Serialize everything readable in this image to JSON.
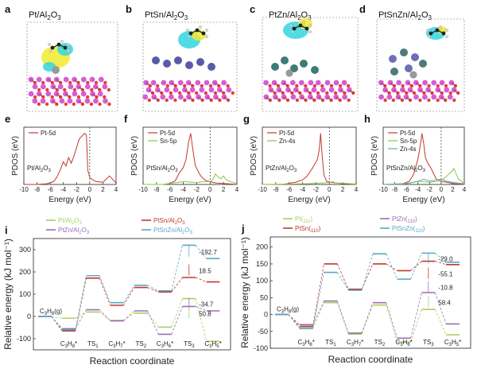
{
  "panels": {
    "a": {
      "letter": "a",
      "title": "Pt/Al2O3"
    },
    "b": {
      "letter": "b",
      "title": "PtSn/Al2O3"
    },
    "c": {
      "letter": "c",
      "title": "PtZn/Al2O3"
    },
    "d": {
      "letter": "d",
      "title": "PtSnZn/Al2O3"
    }
  },
  "colors": {
    "pt": "#c0392b",
    "sn": "#8bc34a",
    "zn": "#5ba7b5",
    "ptsn": "#c0392b",
    "ptzn": "#9b6fb5",
    "ptsnzn": "#5aa7c8",
    "pt_only": "#a8d060",
    "al": "#d65cd6",
    "o": "#e0413a",
    "iso_yellow": "#f2ea2f",
    "iso_cyan": "#33d6e0"
  },
  "chart_data": [
    {
      "type": "line",
      "panel": "e",
      "title": "Pt/Al2O3",
      "xlabel": "Energy (eV)",
      "ylabel": "PDOS (eV)",
      "xlim": [
        -10,
        4
      ],
      "xticks": [
        "-10",
        "-8",
        "-6",
        "-4",
        "-2",
        "0",
        "2",
        "4"
      ],
      "series": [
        {
          "name": "Pt-5d",
          "x": [
            -10,
            -8,
            -6.5,
            -5.5,
            -5,
            -4.5,
            -4,
            -3.6,
            -3.2,
            -2.8,
            -2.4,
            -2,
            -1.6,
            -1.2,
            -0.8,
            -0.5,
            -0.3,
            0,
            0.5,
            1,
            2,
            3,
            4
          ],
          "y": [
            0,
            0,
            0.05,
            0.2,
            0.5,
            1.0,
            1.6,
            1.3,
            1.9,
            1.5,
            2.0,
            2.6,
            3.2,
            3.4,
            3.6,
            3.5,
            1.0,
            0.5,
            0.3,
            0.2,
            0.15,
            0.6,
            0.1
          ]
        }
      ]
    },
    {
      "type": "line",
      "panel": "f",
      "title": "PtSn/Al2O3",
      "xlabel": "Energy (eV)",
      "ylabel": "PDOS (eV)",
      "xlim": [
        -10,
        4
      ],
      "xticks": [
        "-10",
        "-8",
        "-6",
        "-4",
        "-2",
        "0",
        "2",
        "4"
      ],
      "series": [
        {
          "name": "Pt-5d",
          "x": [
            -10,
            -7,
            -6,
            -5.2,
            -4.6,
            -4,
            -3.6,
            -3.2,
            -2.9,
            -2.6,
            -2.2,
            -1.8,
            -1.4,
            -1,
            -0.6,
            0,
            0.5,
            1,
            2,
            4
          ],
          "y": [
            0,
            0,
            0.1,
            0.4,
            1.2,
            1.8,
            2.6,
            4.5,
            5.4,
            3.8,
            2.0,
            1.4,
            0.9,
            0.6,
            0.4,
            0.3,
            0.2,
            0.15,
            0.1,
            0
          ]
        },
        {
          "name": "Sn-5p",
          "x": [
            -10,
            -7,
            -5,
            -4,
            -3,
            -2,
            -1,
            0,
            0.4,
            0.8,
            1.2,
            1.6,
            2,
            2.4,
            3,
            4
          ],
          "y": [
            0,
            0,
            0.2,
            0.3,
            0.25,
            0.2,
            0.3,
            0.3,
            0.5,
            1.1,
            0.8,
            0.6,
            0.9,
            0.5,
            0.3,
            0.1
          ]
        }
      ]
    },
    {
      "type": "line",
      "panel": "g",
      "title": "PtZn/Al2O3",
      "xlabel": "Energy (eV)",
      "ylabel": "PDOS (eV)",
      "xlim": [
        -10,
        4
      ],
      "xticks": [
        "-10",
        "-8",
        "-6",
        "-4",
        "-2",
        "0",
        "2",
        "4"
      ],
      "series": [
        {
          "name": "Pt-5d",
          "x": [
            -10,
            -7,
            -5,
            -4,
            -3.4,
            -3,
            -2.6,
            -2.2,
            -1.8,
            -1.5,
            -1.3,
            -1.1,
            -0.8,
            -0.4,
            0,
            1,
            2,
            4
          ],
          "y": [
            0,
            0,
            0.3,
            0.6,
            1.0,
            1.5,
            2.0,
            2.6,
            3.2,
            4.5,
            6.6,
            4.0,
            1.2,
            0.4,
            0.3,
            0.2,
            0.1,
            0
          ]
        },
        {
          "name": "Zn-4s",
          "x": [
            -10,
            -6,
            -3,
            -2,
            -1,
            0,
            0.5,
            1,
            2,
            3,
            4
          ],
          "y": [
            0,
            0.05,
            0.1,
            0.15,
            0.2,
            0.25,
            0.35,
            0.2,
            0.15,
            0.1,
            0.05
          ]
        }
      ]
    },
    {
      "type": "line",
      "panel": "h",
      "title": "PtSnZn/Al2O3",
      "xlabel": "Energy (eV)",
      "ylabel": "PDOS (eV)",
      "xlim": [
        -10,
        4
      ],
      "xticks": [
        "-10",
        "-8",
        "-6",
        "-4",
        "-2",
        "0",
        "2",
        "4"
      ],
      "series": [
        {
          "name": "Pt-5d",
          "x": [
            -10,
            -7,
            -5.5,
            -4.8,
            -4.4,
            -4,
            -3.6,
            -3.3,
            -3,
            -2.7,
            -2.3,
            -1.8,
            -1.3,
            -0.8,
            0,
            1,
            2,
            4
          ],
          "y": [
            0,
            0,
            0.3,
            0.9,
            1.6,
            2.4,
            3.6,
            4.8,
            3.8,
            2.5,
            2.0,
            1.6,
            1.0,
            0.5,
            0.3,
            0.2,
            0.1,
            0
          ]
        },
        {
          "name": "Sn-5p",
          "x": [
            -10,
            -6,
            -4,
            -2,
            -0.5,
            0,
            0.6,
            1.2,
            1.8,
            2.2,
            2.6,
            3,
            4
          ],
          "y": [
            0,
            0.1,
            0.3,
            0.2,
            0.3,
            0.4,
            0.6,
            0.9,
            1.2,
            1.5,
            1.0,
            0.5,
            0.1
          ]
        },
        {
          "name": "Zn-4s",
          "x": [
            -10,
            -6,
            -4,
            -3,
            -2,
            -1,
            0,
            1,
            2,
            4
          ],
          "y": [
            0,
            0.05,
            0.3,
            0.5,
            0.3,
            0.4,
            0.5,
            0.3,
            0.2,
            0.05
          ]
        }
      ]
    },
    {
      "type": "line",
      "panel": "i",
      "xlabel": "Reaction coordinate",
      "ylabel": "Relative energy (kJ mol⁻¹)",
      "ylim": [
        -150,
        350
      ],
      "yticks": [
        "-100",
        "0",
        "100",
        "200",
        "300"
      ],
      "stages": [
        "C3H8(g)",
        "C3H8*",
        "TS1",
        "C3H7*",
        "TS2",
        "C3H6*",
        "TS3",
        "C3H5*"
      ],
      "series": [
        {
          "name": "Pt/Al2O3",
          "values": [
            0,
            -8,
            20,
            -18,
            15,
            -48,
            80,
            -112
          ]
        },
        {
          "name": "PtSn/Al2O3",
          "values": [
            0,
            -65,
            172,
            50,
            130,
            110,
            175,
            155
          ]
        },
        {
          "name": "PtZn/Al2O3",
          "values": [
            0,
            -55,
            30,
            -20,
            25,
            -80,
            45,
            25
          ]
        },
        {
          "name": "PtSnZn/Al2O3",
          "values": [
            0,
            -60,
            183,
            62,
            140,
            115,
            320,
            260
          ]
        }
      ],
      "annotations": [
        "-192.7",
        "18.5",
        "-34.7",
        "50.8"
      ]
    },
    {
      "type": "line",
      "panel": "j",
      "xlabel": "Reaction coordinate",
      "ylabel": "Relative energy (kJ mol⁻¹)",
      "ylim": [
        -100,
        230
      ],
      "yticks": [
        "-100",
        "-50",
        "0",
        "50",
        "100",
        "150",
        "200"
      ],
      "stages": [
        "C3H8(g)",
        "C3H8*",
        "TS1",
        "C3H7*",
        "TS2",
        "C3H6*",
        "TS3",
        "C3H5*"
      ],
      "series": [
        {
          "name": "Pt(111)",
          "values": [
            0,
            -42,
            35,
            -58,
            28,
            -82,
            15,
            -60
          ]
        },
        {
          "name": "PtSn(110)",
          "values": [
            0,
            -35,
            150,
            75,
            150,
            130,
            158,
            148
          ]
        },
        {
          "name": "PtZn(110)",
          "values": [
            0,
            -30,
            40,
            -55,
            35,
            -70,
            65,
            -28
          ]
        },
        {
          "name": "PtSnZn(110)",
          "values": [
            0,
            -40,
            125,
            72,
            180,
            105,
            182,
            155
          ]
        }
      ],
      "annotations": [
        "-29.0",
        "-55.1",
        "-10.8",
        "58.4"
      ]
    }
  ],
  "panel_letters": {
    "e": "e",
    "f": "f",
    "g": "g",
    "h": "h",
    "i": "i",
    "j": "j"
  },
  "legend_e": [
    "Pt-5d"
  ],
  "legend_f": [
    "Pt-5d",
    "Sn-5p"
  ],
  "legend_g": [
    "Pt-5d",
    "Zn-4s"
  ],
  "legend_h": [
    "Pt-5d",
    "Sn-5p",
    "Zn-4s"
  ],
  "inset_e": "Pt/Al2O3",
  "inset_f": "PtSn/Al2O3",
  "inset_g": "PtZn/Al2O3",
  "inset_h": "PtSnZn/Al2O3",
  "legend_i": [
    "Pt/Al2O3",
    "PtSn/Al2O3",
    "PtZn/Al2O3",
    "PtSnZn/Al2O3"
  ],
  "legend_j": [
    "Pt(111)",
    "PtZn(110)",
    "PtSn(110)",
    "PtSnZn(110)"
  ]
}
